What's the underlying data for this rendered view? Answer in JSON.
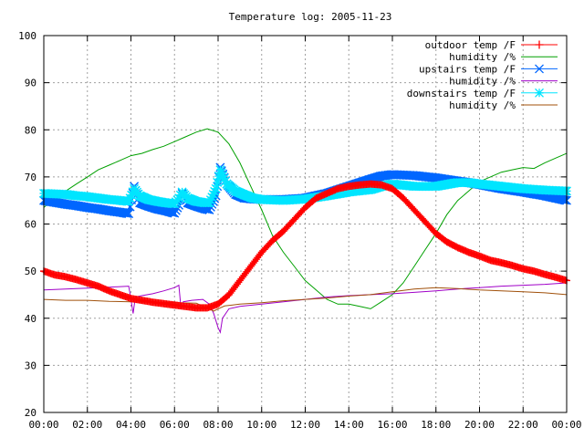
{
  "chart_data": {
    "type": "line",
    "title": "Temperature log: 2005-11-23",
    "xlabel": "",
    "ylabel": "",
    "ylim": [
      20,
      100
    ],
    "xlim": [
      0,
      24
    ],
    "x_tick_labels": [
      "00:00",
      "02:00",
      "04:00",
      "06:00",
      "08:00",
      "10:00",
      "12:00",
      "14:00",
      "16:00",
      "18:00",
      "20:00",
      "22:00",
      "00:00"
    ],
    "y_tick_labels": [
      "20",
      "30",
      "40",
      "50",
      "60",
      "70",
      "80",
      "90",
      "100"
    ],
    "grid": true,
    "legend_position": "top-right",
    "series": [
      {
        "name": "outdoor temp /F",
        "color": "#ff0000",
        "marker": "plus",
        "style": "thick",
        "x": [
          0,
          0.5,
          1,
          1.5,
          2,
          2.5,
          3,
          3.5,
          4,
          4.5,
          5,
          5.5,
          6,
          6.5,
          7,
          7.5,
          8,
          8.5,
          9,
          9.5,
          10,
          10.5,
          11,
          11.5,
          12,
          12.5,
          13,
          13.5,
          14,
          14.5,
          15,
          15.5,
          16,
          16.5,
          17,
          17.5,
          18,
          18.5,
          19,
          19.5,
          20,
          20.5,
          21,
          21.5,
          22,
          22.5,
          23,
          23.5,
          24
        ],
        "y": [
          50,
          49.2,
          48.8,
          48.2,
          47.5,
          46.8,
          45.8,
          45,
          44.2,
          43.8,
          43.4,
          43.1,
          42.8,
          42.5,
          42.2,
          42.2,
          43,
          45,
          48,
          51,
          54,
          56.5,
          58.5,
          61,
          63.5,
          65.5,
          66.5,
          67.5,
          68,
          68.3,
          68.5,
          68.3,
          67.5,
          65.5,
          63,
          60.5,
          58,
          56.2,
          55,
          54,
          53.2,
          52.3,
          51.8,
          51.2,
          50.5,
          50,
          49.3,
          48.7,
          48
        ]
      },
      {
        "name": "humidity /%",
        "color": "#00a000",
        "marker": "none",
        "style": "thin",
        "x": [
          0,
          0.5,
          1,
          1.5,
          2,
          2.5,
          3,
          3.5,
          4,
          4.5,
          5,
          5.5,
          6,
          6.5,
          7,
          7.5,
          8,
          8.5,
          9,
          9.5,
          10,
          10.5,
          11,
          11.5,
          12,
          12.5,
          13,
          13.5,
          14,
          14.5,
          15,
          15.5,
          16,
          16.5,
          17,
          17.5,
          18,
          18.5,
          19,
          19.5,
          20,
          20.5,
          21,
          21.5,
          22,
          22.5,
          23,
          23.5,
          24
        ],
        "y": [
          63.5,
          65.5,
          67,
          68.5,
          70,
          71.5,
          72.5,
          73.5,
          74.5,
          75,
          75.8,
          76.5,
          77.5,
          78.5,
          79.5,
          80.2,
          79.5,
          77,
          73,
          68,
          63,
          57.5,
          54,
          51,
          48,
          46,
          44,
          43,
          43,
          42.5,
          42,
          43.5,
          45,
          47.5,
          51,
          54.5,
          58,
          62,
          65,
          67,
          69,
          70,
          71,
          71.5,
          72,
          71.8,
          73,
          74,
          75
        ]
      },
      {
        "name": "upstairs temp /F",
        "color": "#0066ff",
        "marker": "cross",
        "style": "thick",
        "x": [
          0,
          0.5,
          1,
          1.5,
          2,
          2.5,
          3,
          3.5,
          3.9,
          4.15,
          4.4,
          4.8,
          5.2,
          5.6,
          6,
          6.2,
          6.35,
          6.6,
          7,
          7.4,
          7.6,
          7.9,
          8.1,
          8.4,
          8.8,
          9.2,
          9.6,
          10,
          11,
          12,
          13,
          14,
          15,
          15.5,
          16,
          17,
          18,
          19,
          19.5,
          20,
          21,
          22,
          23,
          24
        ],
        "y": [
          65,
          64.6,
          64.2,
          63.9,
          63.5,
          63.2,
          62.8,
          62.5,
          62.2,
          68,
          64.5,
          63.8,
          63.2,
          62.8,
          62.3,
          64,
          66.5,
          64.5,
          63.8,
          63.2,
          63,
          66,
          72,
          68.5,
          66.3,
          65.5,
          65.3,
          65.2,
          65.2,
          65.5,
          66.5,
          68,
          69.5,
          70.2,
          70.5,
          70.3,
          69.8,
          69.1,
          68.8,
          68.4,
          67.5,
          66.8,
          66,
          65
        ]
      },
      {
        "name": "humidity /%",
        "color": "#a000c8",
        "marker": "none",
        "style": "thin",
        "x": [
          0,
          1,
          2,
          3,
          3.9,
          4,
          4.1,
          4.2,
          4.5,
          5,
          5.5,
          6,
          6.2,
          6.3,
          6.4,
          6.8,
          7.3,
          7.6,
          7.8,
          8,
          8.1,
          8.2,
          8.5,
          9,
          10,
          11,
          12,
          13,
          14,
          15,
          16,
          17,
          18,
          19,
          20,
          21,
          22,
          23,
          24
        ],
        "y": [
          46,
          46.2,
          46.4,
          46.6,
          46.8,
          44,
          41,
          44.5,
          44.8,
          45.2,
          45.8,
          46.5,
          47,
          42,
          43.5,
          43.8,
          44,
          43,
          41,
          38,
          37,
          40,
          42,
          42.5,
          43,
          43.5,
          44,
          44.5,
          44.8,
          45,
          45.2,
          45.5,
          45.8,
          46.2,
          46.5,
          46.8,
          47,
          47.2,
          47.5
        ]
      },
      {
        "name": "downstairs temp /F",
        "color": "#00e5ff",
        "marker": "star",
        "style": "thick",
        "x": [
          0,
          0.5,
          1,
          1.5,
          2,
          2.5,
          3,
          3.5,
          3.9,
          4.15,
          4.4,
          4.8,
          5.2,
          5.6,
          6,
          6.2,
          6.35,
          6.6,
          7,
          7.4,
          7.6,
          7.9,
          8.1,
          8.4,
          8.8,
          9.2,
          9.6,
          10,
          11,
          12,
          13,
          14,
          15,
          15.5,
          16,
          17,
          18,
          19,
          19.5,
          20,
          21,
          22,
          23,
          24
        ],
        "y": [
          66.5,
          66.4,
          66.3,
          66,
          65.8,
          65.5,
          65.2,
          65,
          64.8,
          67.5,
          66,
          65.2,
          64.8,
          64.5,
          64.3,
          65.5,
          66.8,
          65.5,
          64.8,
          64.5,
          64.5,
          67.5,
          71.5,
          68.5,
          67,
          66.2,
          65.5,
          65.2,
          65,
          65.3,
          66,
          66.8,
          67.3,
          68,
          68.5,
          68,
          68,
          68.8,
          68.8,
          68.5,
          68,
          67.5,
          67.2,
          67
        ]
      },
      {
        "name": "humidity /%",
        "color": "#a0500a",
        "marker": "none",
        "style": "thin",
        "x": [
          0,
          1,
          2,
          3,
          4,
          5,
          6,
          7,
          7.8,
          8,
          8.3,
          9,
          10,
          11,
          12,
          13,
          14,
          15,
          16,
          17,
          18,
          19,
          20,
          21,
          22,
          23,
          24
        ],
        "y": [
          44,
          43.8,
          43.8,
          43.6,
          43.5,
          43.4,
          43.3,
          43.2,
          41.5,
          42,
          42.6,
          43,
          43.3,
          43.7,
          44,
          44.3,
          44.7,
          45,
          45.6,
          46.2,
          46.5,
          46.3,
          46,
          45.8,
          45.6,
          45.4,
          45
        ]
      }
    ]
  }
}
